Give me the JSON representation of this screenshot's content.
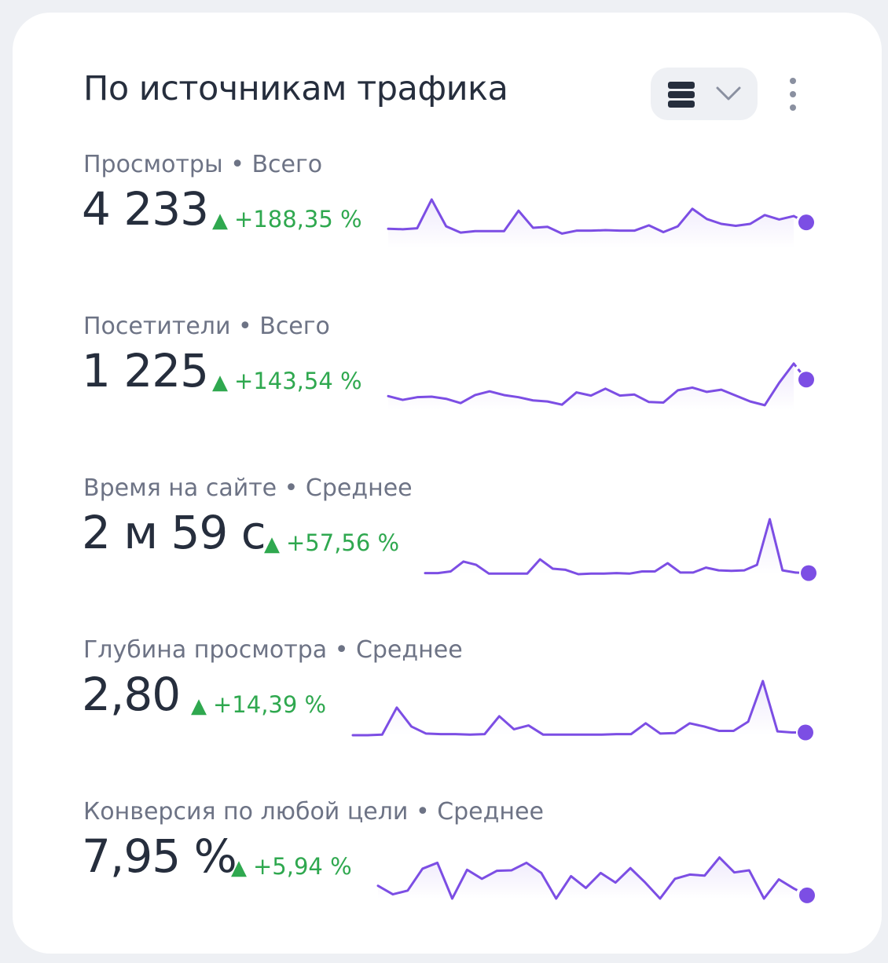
{
  "card": {
    "title": "По источникам трафика",
    "view_toggle_icon": "list-icon",
    "dropdown_icon": "chevron-down-icon",
    "more_icon": "more-vertical-icon"
  },
  "colors": {
    "line": "#7c4ee4",
    "positive": "#2fa84f",
    "text": "#262e3d",
    "muted": "#6d7385"
  },
  "metrics": [
    {
      "label": "Просмотры",
      "aggregate": "Всего",
      "value": "4 233",
      "delta": "+188,35 %",
      "trend": "up",
      "series": [
        40,
        39,
        41,
        100,
        45,
        32,
        35,
        35,
        35,
        77,
        42,
        44,
        30,
        36,
        36,
        37,
        36,
        36,
        47,
        33,
        45,
        81,
        60,
        50,
        46,
        50,
        68,
        59,
        66
      ],
      "last_value": 53
    },
    {
      "label": "Посетители",
      "aggregate": "Всего",
      "value": "1 225",
      "delta": "+143,54 %",
      "trend": "up",
      "series": [
        26,
        19,
        24,
        25,
        21,
        13,
        28,
        35,
        28,
        24,
        18,
        16,
        10,
        33,
        27,
        40,
        27,
        29,
        15,
        14,
        37,
        42,
        34,
        38,
        27,
        16,
        9,
        51,
        87
      ],
      "last_value": 57
    },
    {
      "label": "Время на сайте",
      "aggregate": "Среднее",
      "value": "2 м 59 с",
      "delta": "+57,56 %",
      "trend": "up",
      "series": [
        2,
        2,
        5,
        23,
        17,
        1,
        1,
        1,
        1,
        27,
        10,
        8,
        0,
        1,
        1,
        2,
        1,
        5,
        5,
        20,
        3,
        3,
        12,
        7,
        6,
        7,
        17,
        100,
        7,
        3
      ],
      "last_value": 2
    },
    {
      "label": "Глубина просмотра",
      "aggregate": "Среднее",
      "value": "2,80",
      "delta": "+14,39 %",
      "trend": "up",
      "series": [
        0,
        0,
        1,
        51,
        16,
        3,
        2,
        2,
        1,
        2,
        35,
        11,
        18,
        1,
        1,
        1,
        1,
        1,
        2,
        2,
        22,
        3,
        4,
        22,
        16,
        8,
        8,
        25,
        100,
        7,
        5
      ],
      "last_value": 5
    },
    {
      "label": "Конверсия по любой цели",
      "aggregate": "Среднее",
      "value": "7,95 %",
      "delta": "+5,94 %",
      "trend": "up",
      "series": [
        24,
        8,
        15,
        56,
        67,
        0,
        54,
        37,
        52,
        53,
        67,
        48,
        0,
        42,
        20,
        48,
        30,
        57,
        30,
        0,
        37,
        45,
        43,
        77,
        49,
        53,
        0,
        36,
        19
      ],
      "last_value": 6
    }
  ]
}
